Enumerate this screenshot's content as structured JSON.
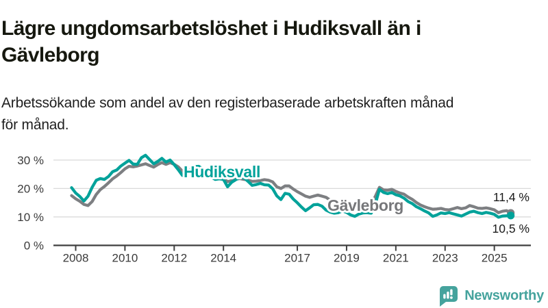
{
  "header": {
    "title_lines": [
      "Lägre ungdomsarbetslöshet i Hudiksvall än i",
      "Gävleborg"
    ],
    "subtitle_lines": [
      "Arbetssökande som andel av den registerbaserade arbetskraften månad",
      "för månad."
    ]
  },
  "chart_data": {
    "type": "line",
    "title": "Lägre ungdomsarbetslöshet i Hudiksvall än i Gävleborg",
    "subtitle": "Arbetssökande som andel av den registerbaserade arbetskraften månad för månad.",
    "unit": "%",
    "grid": true,
    "xlim": [
      2007.6,
      2025.95
    ],
    "ylim": [
      0,
      33
    ],
    "x_ticks": [
      2008,
      2010,
      2012,
      2014,
      2017,
      2019,
      2021,
      2023,
      2025
    ],
    "x_tick_labels": [
      "2008",
      "2010",
      "2012",
      "2014",
      "2017",
      "2019",
      "2021",
      "2023",
      "2025"
    ],
    "y_ticks": [
      0,
      10,
      20,
      30
    ],
    "y_tick_labels": [
      "0 %",
      "10 %",
      "20 %",
      "30 %"
    ],
    "x_start": 2007.8333,
    "x_step_years": 0.166667,
    "series": [
      {
        "name": "Gävleborg",
        "color": "#7d7f82",
        "label_color": "#76777a",
        "end_label": "11,4 %",
        "end_value": 11.4,
        "values": [
          17.5,
          16.4,
          15.5,
          14.4,
          14.0,
          15.4,
          17.9,
          19.6,
          20.7,
          22.0,
          23.4,
          24.4,
          25.6,
          26.9,
          27.8,
          27.6,
          27.9,
          28.3,
          28.7,
          28.1,
          27.5,
          28.4,
          29.1,
          28.5,
          29.1,
          28.5,
          27.6,
          26.1,
          25.5,
          26.0,
          26.6,
          26.5,
          25.8,
          24.7,
          23.9,
          23.4,
          23.6,
          23.5,
          22.4,
          22.8,
          23.3,
          23.5,
          23.2,
          23.0,
          22.5,
          22.6,
          22.8,
          23.1,
          22.9,
          22.3,
          20.6,
          20.0,
          20.9,
          20.9,
          19.8,
          18.9,
          18.1,
          17.3,
          16.9,
          17.3,
          17.7,
          17.3,
          16.9,
          15.9,
          15.4,
          15.0,
          15.1,
          14.6,
          13.9,
          13.6,
          14.0,
          14.4,
          14.6,
          14.7,
          17.2,
          20.4,
          19.5,
          19.4,
          19.7,
          19.0,
          18.4,
          18.0,
          17.0,
          16.2,
          15.1,
          14.2,
          13.6,
          13.1,
          12.7,
          12.8,
          13.0,
          12.6,
          12.5,
          12.9,
          13.3,
          12.9,
          13.2,
          14.0,
          13.6,
          13.1,
          13.0,
          13.2,
          12.9,
          12.5,
          11.5,
          12.0,
          12.2,
          11.4
        ]
      },
      {
        "name": "Hudiksvall",
        "color": "#00a29a",
        "label_color": "#00a29a",
        "end_label": "10,5 %",
        "end_value": 10.5,
        "values": [
          20.3,
          18.4,
          17.2,
          15.6,
          17.3,
          20.4,
          22.9,
          23.5,
          23.2,
          24.2,
          25.9,
          26.5,
          27.9,
          28.9,
          29.9,
          28.6,
          28.5,
          30.8,
          31.7,
          30.2,
          28.7,
          29.5,
          30.6,
          29.3,
          30.0,
          28.4,
          26.6,
          24.6,
          25.2,
          26.8,
          27.7,
          27.8,
          26.8,
          25.2,
          24.0,
          23.2,
          23.4,
          23.2,
          20.6,
          22.2,
          23.1,
          23.8,
          23.8,
          22.5,
          21.1,
          21.4,
          21.8,
          21.3,
          21.2,
          19.9,
          17.4,
          16.1,
          18.3,
          18.0,
          16.3,
          15.0,
          13.5,
          12.2,
          13.2,
          14.3,
          14.4,
          13.8,
          12.4,
          11.7,
          11.3,
          11.5,
          12.1,
          11.6,
          10.7,
          10.2,
          11.0,
          11.4,
          11.5,
          11.3,
          14.5,
          19.7,
          18.6,
          18.2,
          18.6,
          17.8,
          17.4,
          16.6,
          15.4,
          14.7,
          13.6,
          12.9,
          12.1,
          11.4,
          10.2,
          10.7,
          11.4,
          11.2,
          11.5,
          11.1,
          10.7,
          10.3,
          11.0,
          11.7,
          12.0,
          11.5,
          11.2,
          11.6,
          11.3,
          10.9,
          9.9,
          10.3,
          10.4,
          10.5
        ]
      }
    ],
    "legend_position": "inline-labels"
  },
  "colors": {
    "grid": "#d9d9d9",
    "axis": "#3f3f3f",
    "tick_label": "#3a3a3a",
    "value_label": "#1a1a1a",
    "halo": "#ffffff",
    "brand_teal": "#45a39d"
  },
  "footer": {
    "brand": "Newsworthy"
  }
}
